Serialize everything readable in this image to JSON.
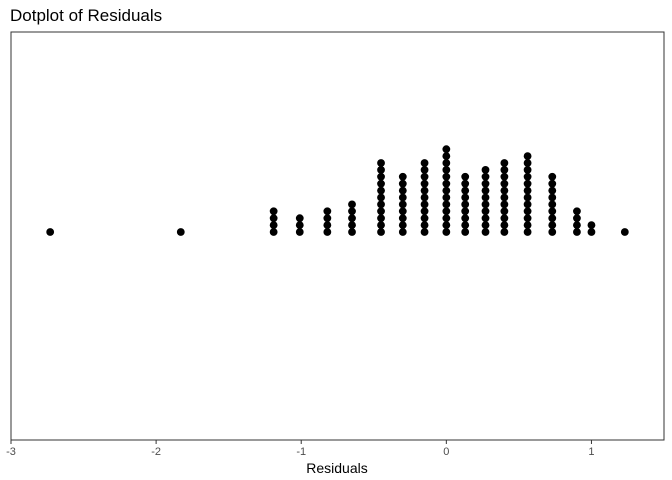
{
  "chart_data": {
    "type": "dotplot",
    "title": "Dotplot of Residuals",
    "xlabel": "Residuals",
    "ylabel": "",
    "xlim": [
      -3,
      1.5
    ],
    "xticks": [
      -3,
      -2,
      -1,
      0,
      1
    ],
    "xtick_labels": [
      "-3",
      "-2",
      "-1",
      "0",
      "1"
    ],
    "grid": false,
    "legend": "none",
    "dot_color": "#000000",
    "bins": [
      {
        "x": -2.73,
        "count": 1
      },
      {
        "x": -1.83,
        "count": 1
      },
      {
        "x": -1.19,
        "count": 4
      },
      {
        "x": -1.01,
        "count": 3
      },
      {
        "x": -0.82,
        "count": 4
      },
      {
        "x": -0.65,
        "count": 5
      },
      {
        "x": -0.45,
        "count": 11
      },
      {
        "x": -0.3,
        "count": 9
      },
      {
        "x": -0.15,
        "count": 11
      },
      {
        "x": 0.0,
        "count": 13
      },
      {
        "x": 0.13,
        "count": 9
      },
      {
        "x": 0.27,
        "count": 10
      },
      {
        "x": 0.4,
        "count": 11
      },
      {
        "x": 0.56,
        "count": 12
      },
      {
        "x": 0.73,
        "count": 9
      },
      {
        "x": 0.9,
        "count": 4
      },
      {
        "x": 1.0,
        "count": 2
      },
      {
        "x": 1.23,
        "count": 1
      }
    ]
  }
}
